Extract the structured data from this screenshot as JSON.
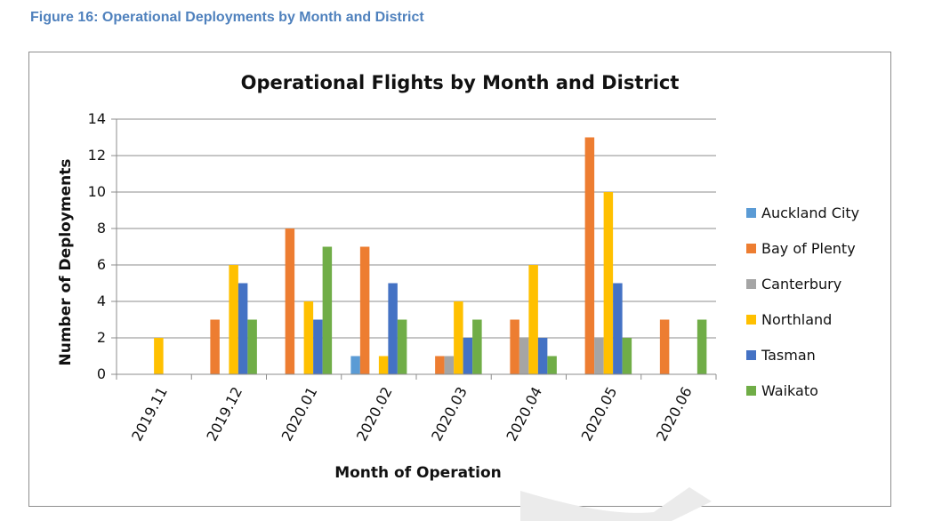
{
  "figure_caption": "Figure 16: Operational Deployments by Month and District",
  "chart_data": {
    "type": "bar",
    "title": "Operational Flights by Month and District",
    "xlabel": "Month of Operation",
    "ylabel": "Number of Deployments",
    "ylim": [
      0,
      14
    ],
    "yticks": [
      0,
      2,
      4,
      6,
      8,
      10,
      12,
      14
    ],
    "grid": true,
    "legend_position": "right",
    "categories": [
      "2019.11",
      "2019.12",
      "2020.01",
      "2020.02",
      "2020.03",
      "2020.04",
      "2020.05",
      "2020.06"
    ],
    "series": [
      {
        "name": "Auckland City",
        "color": "#5b9bd5",
        "values": [
          0,
          0,
          0,
          1,
          0,
          0,
          0,
          0
        ]
      },
      {
        "name": "Bay of Plenty",
        "color": "#ed7d31",
        "values": [
          0,
          3,
          8,
          7,
          1,
          3,
          13,
          3
        ]
      },
      {
        "name": "Canterbury",
        "color": "#a5a5a5",
        "values": [
          0,
          0,
          0,
          0,
          1,
          2,
          2,
          0
        ]
      },
      {
        "name": "Northland",
        "color": "#ffc000",
        "values": [
          2,
          6,
          4,
          1,
          4,
          6,
          10,
          0
        ]
      },
      {
        "name": "Tasman",
        "color": "#4472c4",
        "values": [
          0,
          5,
          3,
          5,
          2,
          2,
          5,
          0
        ]
      },
      {
        "name": "Waikato",
        "color": "#70ad47",
        "values": [
          0,
          3,
          7,
          3,
          3,
          1,
          2,
          3
        ]
      }
    ]
  }
}
